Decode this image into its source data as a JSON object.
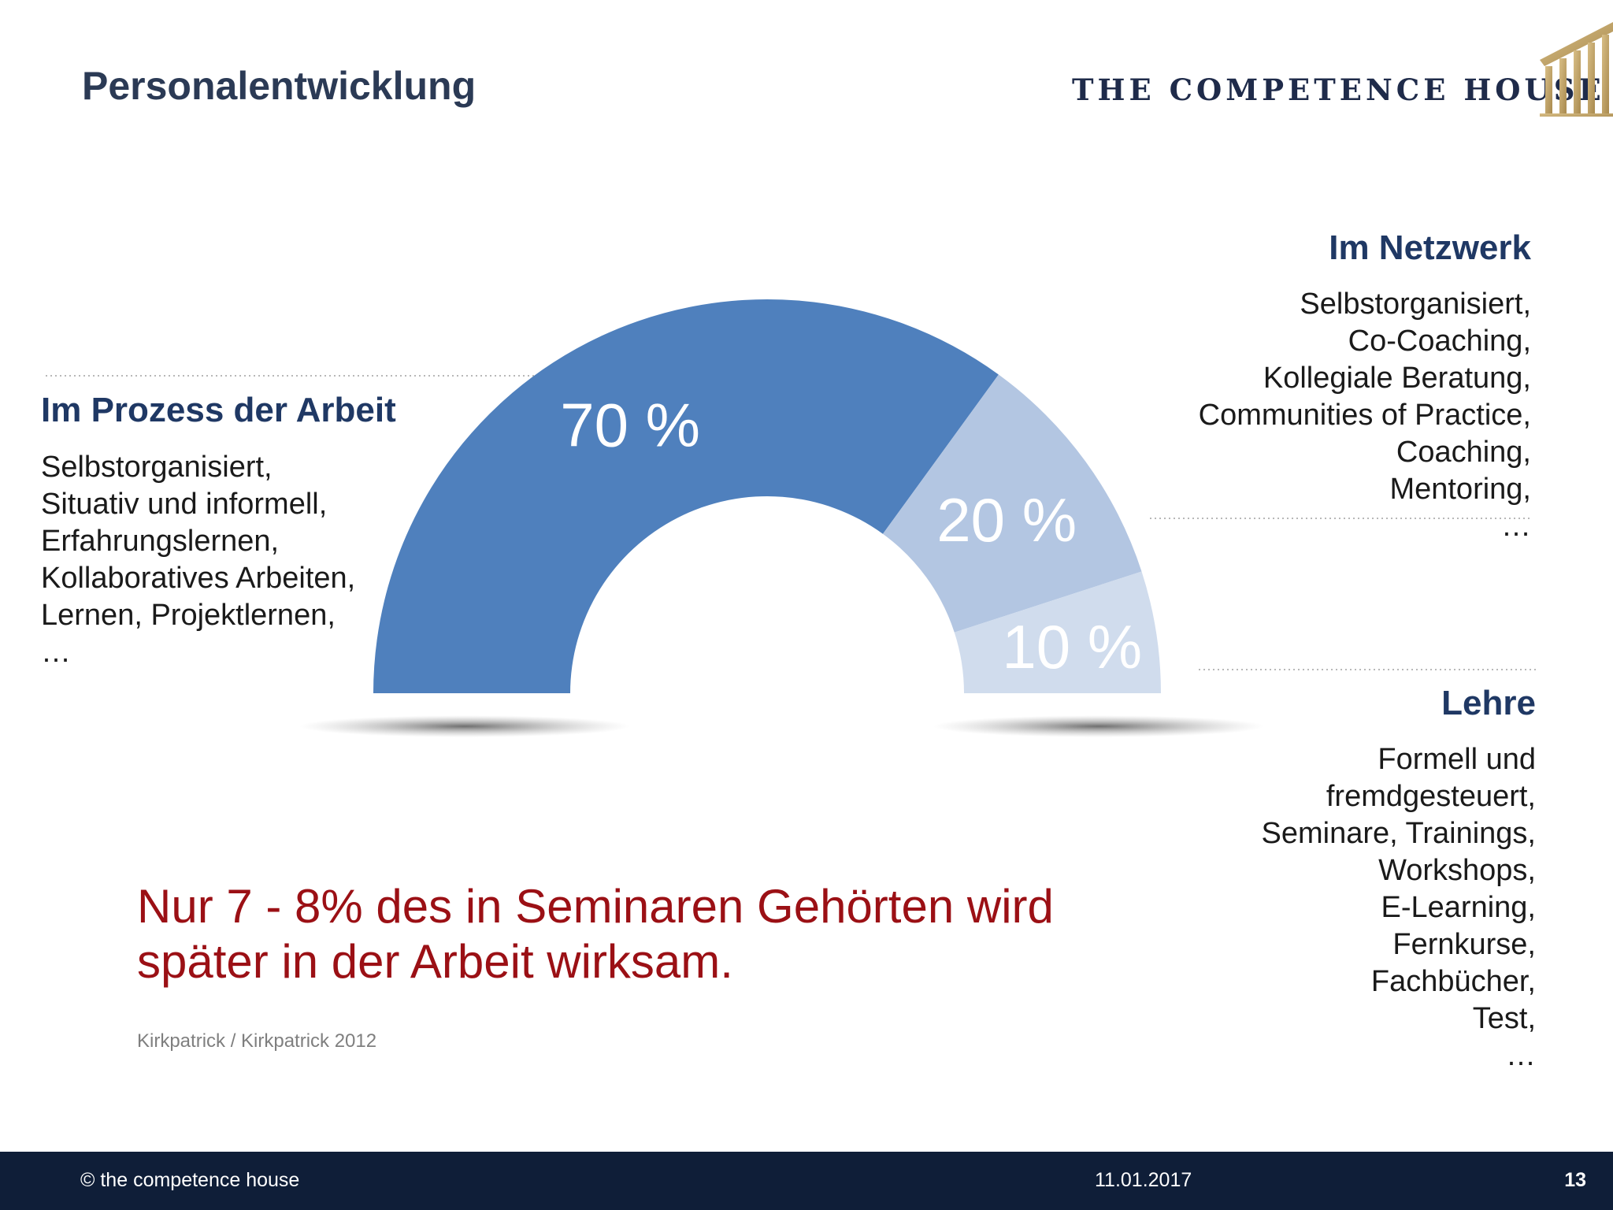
{
  "header": {
    "title": "Personalentwicklung",
    "logo_text": "THE COMPETENCE HOUSE"
  },
  "chart_data": {
    "type": "pie",
    "variant": "half-donut",
    "categories": [
      "Im Prozess der Arbeit",
      "Im Netzwerk",
      "Lehre"
    ],
    "values": [
      70,
      20,
      10
    ],
    "value_labels": [
      "70 %",
      "20 %",
      "10 %"
    ],
    "colors": [
      "#4f80bd",
      "#b3c6e2",
      "#d0dced"
    ]
  },
  "groups": [
    {
      "title": "Im Prozess der Arbeit",
      "items": [
        "Selbstorganisiert,",
        "Situativ und informell,",
        "Erfahrungslernen,",
        "Kollaboratives Arbeiten,",
        "Lernen, Projektlernen,",
        "…"
      ]
    },
    {
      "title": "Im Netzwerk",
      "items": [
        "Selbstorganisiert,",
        "Co-Coaching,",
        "Kollegiale Beratung,",
        "Communities of Practice,",
        "Coaching,",
        "Mentoring,",
        "…"
      ]
    },
    {
      "title": "Lehre",
      "items": [
        "Formell und",
        "fremdgesteuert,",
        "Seminare, Trainings,",
        "Workshops,",
        "E-Learning,",
        "Fernkurse,",
        "Fachbücher,",
        "Test,",
        "…"
      ]
    }
  ],
  "statement": {
    "line1": "Nur 7 - 8% des in Seminaren Gehörten wird",
    "line2": "später in der Arbeit wirksam."
  },
  "source": "Kirkpatrick / Kirkpatrick 2012",
  "footer": {
    "copyright": "© the competence house",
    "date": "11.01.2017",
    "page": "13"
  }
}
